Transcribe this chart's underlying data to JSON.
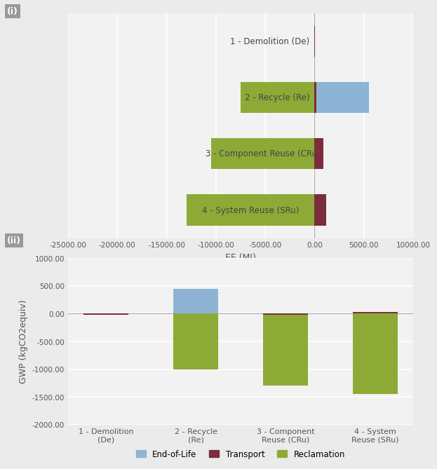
{
  "chart_i": {
    "categories": [
      "4 - System Reuse (SRu)",
      "3 - Component Reuse (CRu)",
      "2 - Recycle (Re)",
      "1 - Demolition (De)"
    ],
    "reclamation": [
      -13000,
      -10500,
      -7500,
      0
    ],
    "transport": [
      1200,
      900,
      200,
      50
    ],
    "eol": [
      0,
      0,
      5500,
      0
    ],
    "xlim": [
      -25000,
      10000
    ],
    "xticks": [
      -25000,
      -20000,
      -15000,
      -10000,
      -5000,
      0,
      5000,
      10000
    ],
    "xlabel": "EE (MJ)",
    "bar_height": 0.55
  },
  "chart_ii": {
    "categories": [
      "1 - Demolition\n(De)",
      "2 - Recycle\n(Re)",
      "3 - Component\nReuse (CRu)",
      "4 - System\nReuse (SRu)"
    ],
    "reclamation": [
      0,
      -1000,
      -1300,
      -1450
    ],
    "transport": [
      -20,
      0,
      -20,
      30
    ],
    "eol": [
      0,
      450,
      0,
      0
    ],
    "ylim": [
      -2000,
      1000
    ],
    "yticks": [
      -2000,
      -1500,
      -1000,
      -500,
      0,
      500,
      1000
    ],
    "ylabel": "GWP (kgCO2equiv)",
    "bar_width": 0.5
  },
  "colors": {
    "eol": "#8DB4D5",
    "transport": "#7B2D3E",
    "reclamation": "#8EAA36"
  },
  "label_i": "(i)",
  "label_ii": "(ii)",
  "bg_color": "#F2F2F2",
  "grid_color": "#FFFFFF",
  "fig_bg": "#EBEBEB"
}
